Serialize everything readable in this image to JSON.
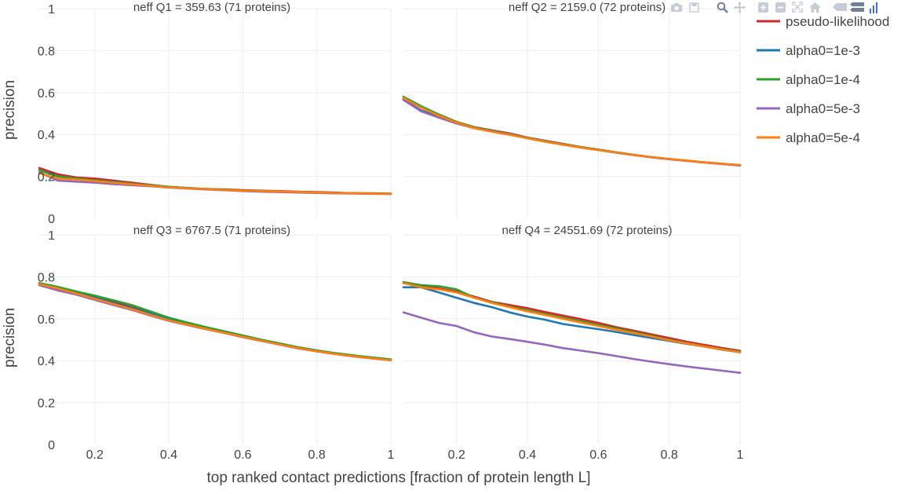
{
  "chart_data": [
    {
      "type": "line",
      "title": "neff  Q1 = 359.63 (71 proteins)",
      "xlabel": "top ranked contact predictions [fraction of protein length L]",
      "ylabel": "precision",
      "xlim": [
        0.05,
        1
      ],
      "ylim": [
        0,
        1
      ],
      "x": [
        0.05,
        0.1,
        0.15,
        0.2,
        0.25,
        0.3,
        0.35,
        0.4,
        0.45,
        0.5,
        0.55,
        0.6,
        0.65,
        0.7,
        0.75,
        0.8,
        0.85,
        0.9,
        0.95,
        1.0
      ],
      "series": [
        {
          "name": "pseudo-likelihood",
          "values": [
            0.24,
            0.21,
            0.195,
            0.19,
            0.18,
            0.17,
            0.16,
            0.15,
            0.145,
            0.14,
            0.138,
            0.135,
            0.132,
            0.13,
            0.127,
            0.125,
            0.123,
            0.12,
            0.12,
            0.118
          ]
        },
        {
          "name": "alpha0=1e-3",
          "values": [
            0.23,
            0.2,
            0.19,
            0.18,
            0.175,
            0.165,
            0.158,
            0.15,
            0.144,
            0.14,
            0.136,
            0.132,
            0.13,
            0.127,
            0.125,
            0.123,
            0.121,
            0.119,
            0.118,
            0.117
          ]
        },
        {
          "name": "alpha0=1e-4",
          "values": [
            0.23,
            0.2,
            0.19,
            0.182,
            0.172,
            0.165,
            0.157,
            0.15,
            0.145,
            0.14,
            0.136,
            0.133,
            0.13,
            0.128,
            0.125,
            0.123,
            0.121,
            0.12,
            0.118,
            0.117
          ]
        },
        {
          "name": "alpha0=5e-3",
          "values": [
            0.22,
            0.18,
            0.175,
            0.17,
            0.163,
            0.158,
            0.153,
            0.147,
            0.142,
            0.138,
            0.134,
            0.13,
            0.127,
            0.125,
            0.123,
            0.121,
            0.119,
            0.118,
            0.117,
            0.116
          ]
        },
        {
          "name": "alpha0=5e-4",
          "values": [
            0.215,
            0.19,
            0.185,
            0.178,
            0.17,
            0.162,
            0.155,
            0.148,
            0.143,
            0.14,
            0.135,
            0.132,
            0.13,
            0.128,
            0.126,
            0.123,
            0.121,
            0.119,
            0.118,
            0.116
          ]
        }
      ]
    },
    {
      "type": "line",
      "title": "neff  Q2 = 2159.0 (72 proteins)",
      "xlim": [
        0.05,
        1
      ],
      "ylim": [
        0,
        1
      ],
      "x": [
        0.05,
        0.1,
        0.15,
        0.2,
        0.25,
        0.3,
        0.35,
        0.4,
        0.45,
        0.5,
        0.55,
        0.6,
        0.65,
        0.7,
        0.75,
        0.8,
        0.85,
        0.9,
        0.95,
        1.0
      ],
      "series": [
        {
          "name": "pseudo-likelihood",
          "values": [
            0.57,
            0.53,
            0.495,
            0.46,
            0.435,
            0.42,
            0.405,
            0.385,
            0.37,
            0.355,
            0.34,
            0.328,
            0.315,
            0.303,
            0.292,
            0.283,
            0.275,
            0.267,
            0.26,
            0.253
          ]
        },
        {
          "name": "alpha0=1e-3",
          "values": [
            0.565,
            0.515,
            0.485,
            0.455,
            0.43,
            0.415,
            0.4,
            0.382,
            0.366,
            0.352,
            0.338,
            0.326,
            0.313,
            0.302,
            0.291,
            0.282,
            0.274,
            0.266,
            0.259,
            0.252
          ]
        },
        {
          "name": "alpha0=1e-4",
          "values": [
            0.58,
            0.535,
            0.495,
            0.46,
            0.433,
            0.418,
            0.402,
            0.384,
            0.368,
            0.353,
            0.34,
            0.327,
            0.315,
            0.303,
            0.292,
            0.283,
            0.275,
            0.267,
            0.26,
            0.254
          ]
        },
        {
          "name": "alpha0=5e-3",
          "values": [
            0.565,
            0.51,
            0.48,
            0.452,
            0.43,
            0.415,
            0.4,
            0.382,
            0.366,
            0.352,
            0.338,
            0.326,
            0.313,
            0.302,
            0.291,
            0.282,
            0.274,
            0.266,
            0.259,
            0.252
          ]
        },
        {
          "name": "alpha0=5e-4",
          "values": [
            0.575,
            0.528,
            0.49,
            0.457,
            0.43,
            0.413,
            0.398,
            0.382,
            0.366,
            0.351,
            0.338,
            0.326,
            0.314,
            0.302,
            0.292,
            0.283,
            0.275,
            0.267,
            0.26,
            0.254
          ]
        }
      ]
    },
    {
      "type": "line",
      "title": "neff  Q3 = 6767.5 (71 proteins)",
      "xlim": [
        0.05,
        1
      ],
      "ylim": [
        0,
        1
      ],
      "x": [
        0.05,
        0.1,
        0.15,
        0.2,
        0.25,
        0.3,
        0.35,
        0.4,
        0.45,
        0.5,
        0.55,
        0.6,
        0.65,
        0.7,
        0.75,
        0.8,
        0.85,
        0.9,
        0.95,
        1.0
      ],
      "series": [
        {
          "name": "pseudo-likelihood",
          "values": [
            0.77,
            0.75,
            0.73,
            0.705,
            0.68,
            0.655,
            0.628,
            0.6,
            0.578,
            0.558,
            0.538,
            0.518,
            0.498,
            0.48,
            0.462,
            0.447,
            0.433,
            0.422,
            0.412,
            0.403
          ]
        },
        {
          "name": "alpha0=1e-3",
          "values": [
            0.765,
            0.745,
            0.725,
            0.7,
            0.675,
            0.65,
            0.624,
            0.597,
            0.576,
            0.556,
            0.536,
            0.516,
            0.497,
            0.479,
            0.461,
            0.446,
            0.433,
            0.422,
            0.412,
            0.404
          ]
        },
        {
          "name": "alpha0=1e-4",
          "values": [
            0.77,
            0.752,
            0.73,
            0.71,
            0.688,
            0.665,
            0.635,
            0.605,
            0.582,
            0.56,
            0.54,
            0.52,
            0.5,
            0.482,
            0.464,
            0.449,
            0.436,
            0.425,
            0.415,
            0.406
          ]
        },
        {
          "name": "alpha0=5e-3",
          "values": [
            0.76,
            0.735,
            0.715,
            0.69,
            0.665,
            0.642,
            0.615,
            0.59,
            0.57,
            0.55,
            0.532,
            0.512,
            0.494,
            0.476,
            0.458,
            0.444,
            0.431,
            0.42,
            0.41,
            0.402
          ]
        },
        {
          "name": "alpha0=5e-4",
          "values": [
            0.765,
            0.745,
            0.72,
            0.695,
            0.67,
            0.645,
            0.618,
            0.592,
            0.572,
            0.552,
            0.533,
            0.514,
            0.495,
            0.477,
            0.46,
            0.445,
            0.432,
            0.421,
            0.411,
            0.402
          ]
        }
      ]
    },
    {
      "type": "line",
      "title": "neff  Q4 = 24551.69 (72 proteins)",
      "xlim": [
        0.05,
        1
      ],
      "ylim": [
        0,
        1
      ],
      "x": [
        0.05,
        0.1,
        0.15,
        0.2,
        0.25,
        0.3,
        0.35,
        0.4,
        0.45,
        0.5,
        0.55,
        0.6,
        0.65,
        0.7,
        0.75,
        0.8,
        0.85,
        0.9,
        0.95,
        1.0
      ],
      "series": [
        {
          "name": "pseudo-likelihood",
          "values": [
            0.77,
            0.76,
            0.745,
            0.73,
            0.705,
            0.68,
            0.665,
            0.65,
            0.632,
            0.615,
            0.598,
            0.58,
            0.56,
            0.543,
            0.525,
            0.508,
            0.49,
            0.475,
            0.46,
            0.447
          ]
        },
        {
          "name": "alpha0=1e-3",
          "values": [
            0.75,
            0.75,
            0.725,
            0.7,
            0.675,
            0.655,
            0.63,
            0.61,
            0.595,
            0.575,
            0.562,
            0.55,
            0.537,
            0.522,
            0.508,
            0.494,
            0.48,
            0.467,
            0.452,
            0.44
          ]
        },
        {
          "name": "alpha0=1e-4",
          "values": [
            0.775,
            0.76,
            0.755,
            0.74,
            0.7,
            0.678,
            0.658,
            0.64,
            0.622,
            0.605,
            0.588,
            0.57,
            0.553,
            0.536,
            0.518,
            0.5,
            0.484,
            0.468,
            0.455,
            0.443
          ]
        },
        {
          "name": "alpha0=5e-3",
          "values": [
            0.63,
            0.605,
            0.58,
            0.565,
            0.535,
            0.515,
            0.503,
            0.49,
            0.476,
            0.46,
            0.448,
            0.436,
            0.422,
            0.408,
            0.395,
            0.383,
            0.372,
            0.362,
            0.352,
            0.342
          ]
        },
        {
          "name": "alpha0=5e-4",
          "values": [
            0.77,
            0.75,
            0.74,
            0.725,
            0.7,
            0.675,
            0.655,
            0.635,
            0.618,
            0.6,
            0.582,
            0.565,
            0.548,
            0.532,
            0.515,
            0.497,
            0.482,
            0.467,
            0.453,
            0.44
          ]
        }
      ]
    }
  ],
  "axes": {
    "ylabel": "precision",
    "xlabel": "top ranked contact predictions [fraction of protein length L]",
    "x_ticks": [
      "0.2",
      "0.4",
      "0.6",
      "0.8",
      "1"
    ],
    "x_tick_values": [
      0.2,
      0.4,
      0.6,
      0.8,
      1.0
    ],
    "y_ticks": [
      "0",
      "0.2",
      "0.4",
      "0.6",
      "0.8",
      "1"
    ],
    "y_tick_values": [
      0,
      0.2,
      0.4,
      0.6,
      0.8,
      1.0
    ]
  },
  "legend": [
    {
      "name": "pseudo-likelihood",
      "color": "#d62728"
    },
    {
      "name": "alpha0=1e-3",
      "color": "#1f77b4"
    },
    {
      "name": "alpha0=1e-4",
      "color": "#2ca02c"
    },
    {
      "name": "alpha0=5e-3",
      "color": "#9467bd"
    },
    {
      "name": "alpha0=5e-4",
      "color": "#ff7f0e"
    }
  ],
  "legend_position": "top-right",
  "grid": true,
  "modebar_icons": [
    "camera-icon",
    "save-icon",
    "zoom-icon",
    "pan-icon",
    "zoom-in-icon",
    "zoom-out-icon",
    "autoscale-icon",
    "reset-axes-icon",
    "hover-closest-icon",
    "hover-compare-icon",
    "plotly-logo-icon"
  ]
}
